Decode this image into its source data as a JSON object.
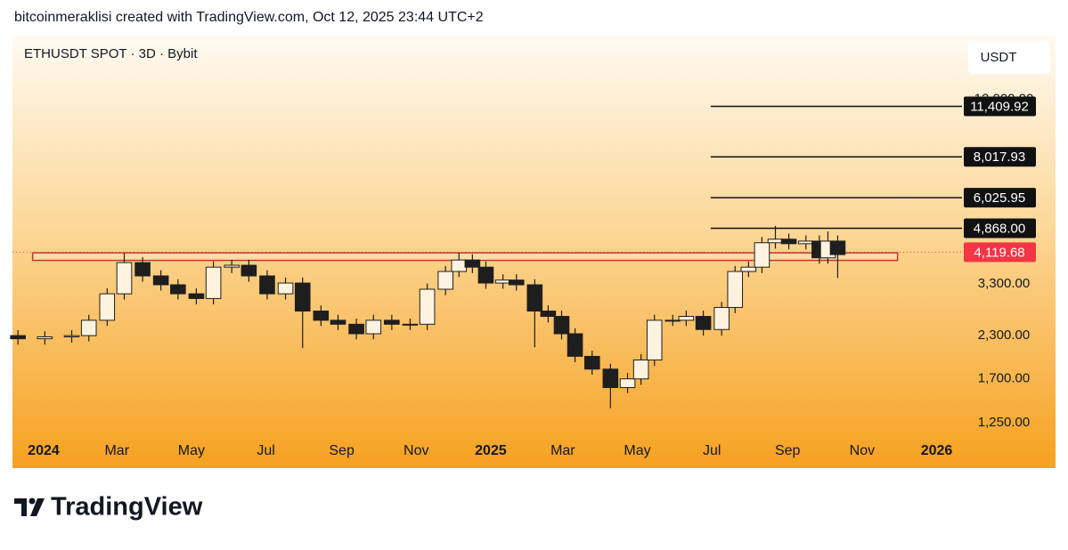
{
  "header": {
    "credit": "bitcoinmeraklisi created with TradingView.com, Oct 12, 2025 23:44 UTC+2"
  },
  "footer": {
    "brand": "TradingView"
  },
  "chart_data": {
    "type": "candlestick",
    "title": "ETHUSDT SPOT · 3D · Bybit",
    "currency": "USDT",
    "log_scale": true,
    "grid": false,
    "xlim": [
      -25.5,
      755.4
    ],
    "ylim": [
      1140,
      18700
    ],
    "xticks": [
      {
        "value": 0,
        "label": "2024"
      },
      {
        "value": 60,
        "label": "Mar"
      },
      {
        "value": 121,
        "label": "May"
      },
      {
        "value": 182,
        "label": "Jul"
      },
      {
        "value": 244,
        "label": "Sep"
      },
      {
        "value": 305,
        "label": "Nov"
      },
      {
        "value": 366,
        "label": "2025"
      },
      {
        "value": 425,
        "label": "Mar"
      },
      {
        "value": 486,
        "label": "May"
      },
      {
        "value": 547,
        "label": "Jul"
      },
      {
        "value": 609,
        "label": "Sep"
      },
      {
        "value": 670,
        "label": "Nov"
      },
      {
        "value": 731,
        "label": "2026"
      }
    ],
    "yticks": [
      {
        "value": 12000,
        "label": "12,000.00"
      },
      {
        "value": 3300,
        "label": "3,300.00"
      },
      {
        "value": 2300,
        "label": "2,300.00"
      },
      {
        "value": 1700,
        "label": "1,700.00"
      },
      {
        "value": 1250,
        "label": "1,250.00"
      }
    ],
    "up_color": "#fff3e0",
    "down_color": "#1e1e1e",
    "x": [
      -21,
      1,
      23,
      37,
      52,
      66,
      81,
      96,
      110,
      125,
      139,
      154,
      168,
      183,
      198,
      212,
      227,
      241,
      256,
      270,
      285,
      300,
      314,
      329,
      340,
      351,
      362,
      376,
      387,
      402,
      413,
      424,
      435,
      449,
      464,
      478,
      489,
      500,
      515,
      526,
      540,
      555,
      566,
      577,
      588,
      599,
      610,
      624,
      635,
      642,
      650
    ],
    "open": [
      2300,
      2250,
      2280,
      2300,
      2560,
      3080,
      3830,
      3490,
      3280,
      3080,
      2980,
      3710,
      3760,
      3490,
      3080,
      3320,
      2730,
      2560,
      2490,
      2330,
      2560,
      2490,
      2490,
      3180,
      3600,
      3900,
      3710,
      3320,
      3390,
      3280,
      2730,
      2630,
      2330,
      1990,
      1820,
      1600,
      1700,
      1940,
      2560,
      2560,
      2630,
      2400,
      2800,
      3600,
      3710,
      4400,
      4510,
      4370,
      4450,
      3960,
      4450
    ],
    "high": [
      2390,
      2370,
      2390,
      2660,
      3200,
      4090,
      3980,
      3630,
      3410,
      3200,
      3860,
      3910,
      3910,
      3630,
      3450,
      3450,
      2840,
      2660,
      2590,
      2660,
      2660,
      2590,
      3310,
      3740,
      4100,
      4060,
      3860,
      3530,
      3530,
      3410,
      2840,
      2740,
      2420,
      2070,
      1890,
      1770,
      2020,
      2660,
      2660,
      2740,
      2740,
      2910,
      3740,
      3860,
      4580,
      4950,
      4690,
      4630,
      4630,
      4760,
      4630
    ],
    "low": [
      2160,
      2160,
      2190,
      2210,
      2460,
      2960,
      3350,
      3150,
      2960,
      2860,
      2860,
      3560,
      3350,
      2960,
      2960,
      2110,
      2460,
      2390,
      2240,
      2240,
      2390,
      2390,
      2390,
      3050,
      3460,
      3560,
      3190,
      3190,
      3150,
      2120,
      2520,
      2240,
      1910,
      1750,
      1385,
      1540,
      1630,
      1860,
      2460,
      2460,
      2300,
      2300,
      2690,
      3460,
      3560,
      4220,
      4200,
      4200,
      3800,
      3800,
      3440
    ],
    "close": [
      2250,
      2280,
      2300,
      2560,
      3080,
      3830,
      3490,
      3280,
      3080,
      2980,
      3710,
      3760,
      3490,
      3080,
      3320,
      2730,
      2560,
      2490,
      2330,
      2560,
      2490,
      2490,
      3180,
      3600,
      3900,
      3710,
      3320,
      3390,
      3280,
      2730,
      2630,
      2330,
      1990,
      1820,
      1600,
      1700,
      1940,
      2560,
      2560,
      2630,
      2400,
      2800,
      3600,
      3710,
      4400,
      4510,
      4370,
      4450,
      3960,
      4450,
      4050
    ],
    "zone": {
      "low": 3890,
      "high": 4100,
      "x": [
        -9,
        699
      ],
      "color": "#c0392b"
    },
    "levels": {
      "x_start": 546,
      "color": "#111111",
      "values": [
        11409.92,
        8017.93,
        6025.95,
        4868.0
      ],
      "value_labels": [
        "11,409.92",
        "8,017.93",
        "6,025.95",
        "4,868.00"
      ]
    },
    "last_price": {
      "value": 4119.68,
      "label": "4,119.68",
      "color": "#f23645"
    }
  }
}
